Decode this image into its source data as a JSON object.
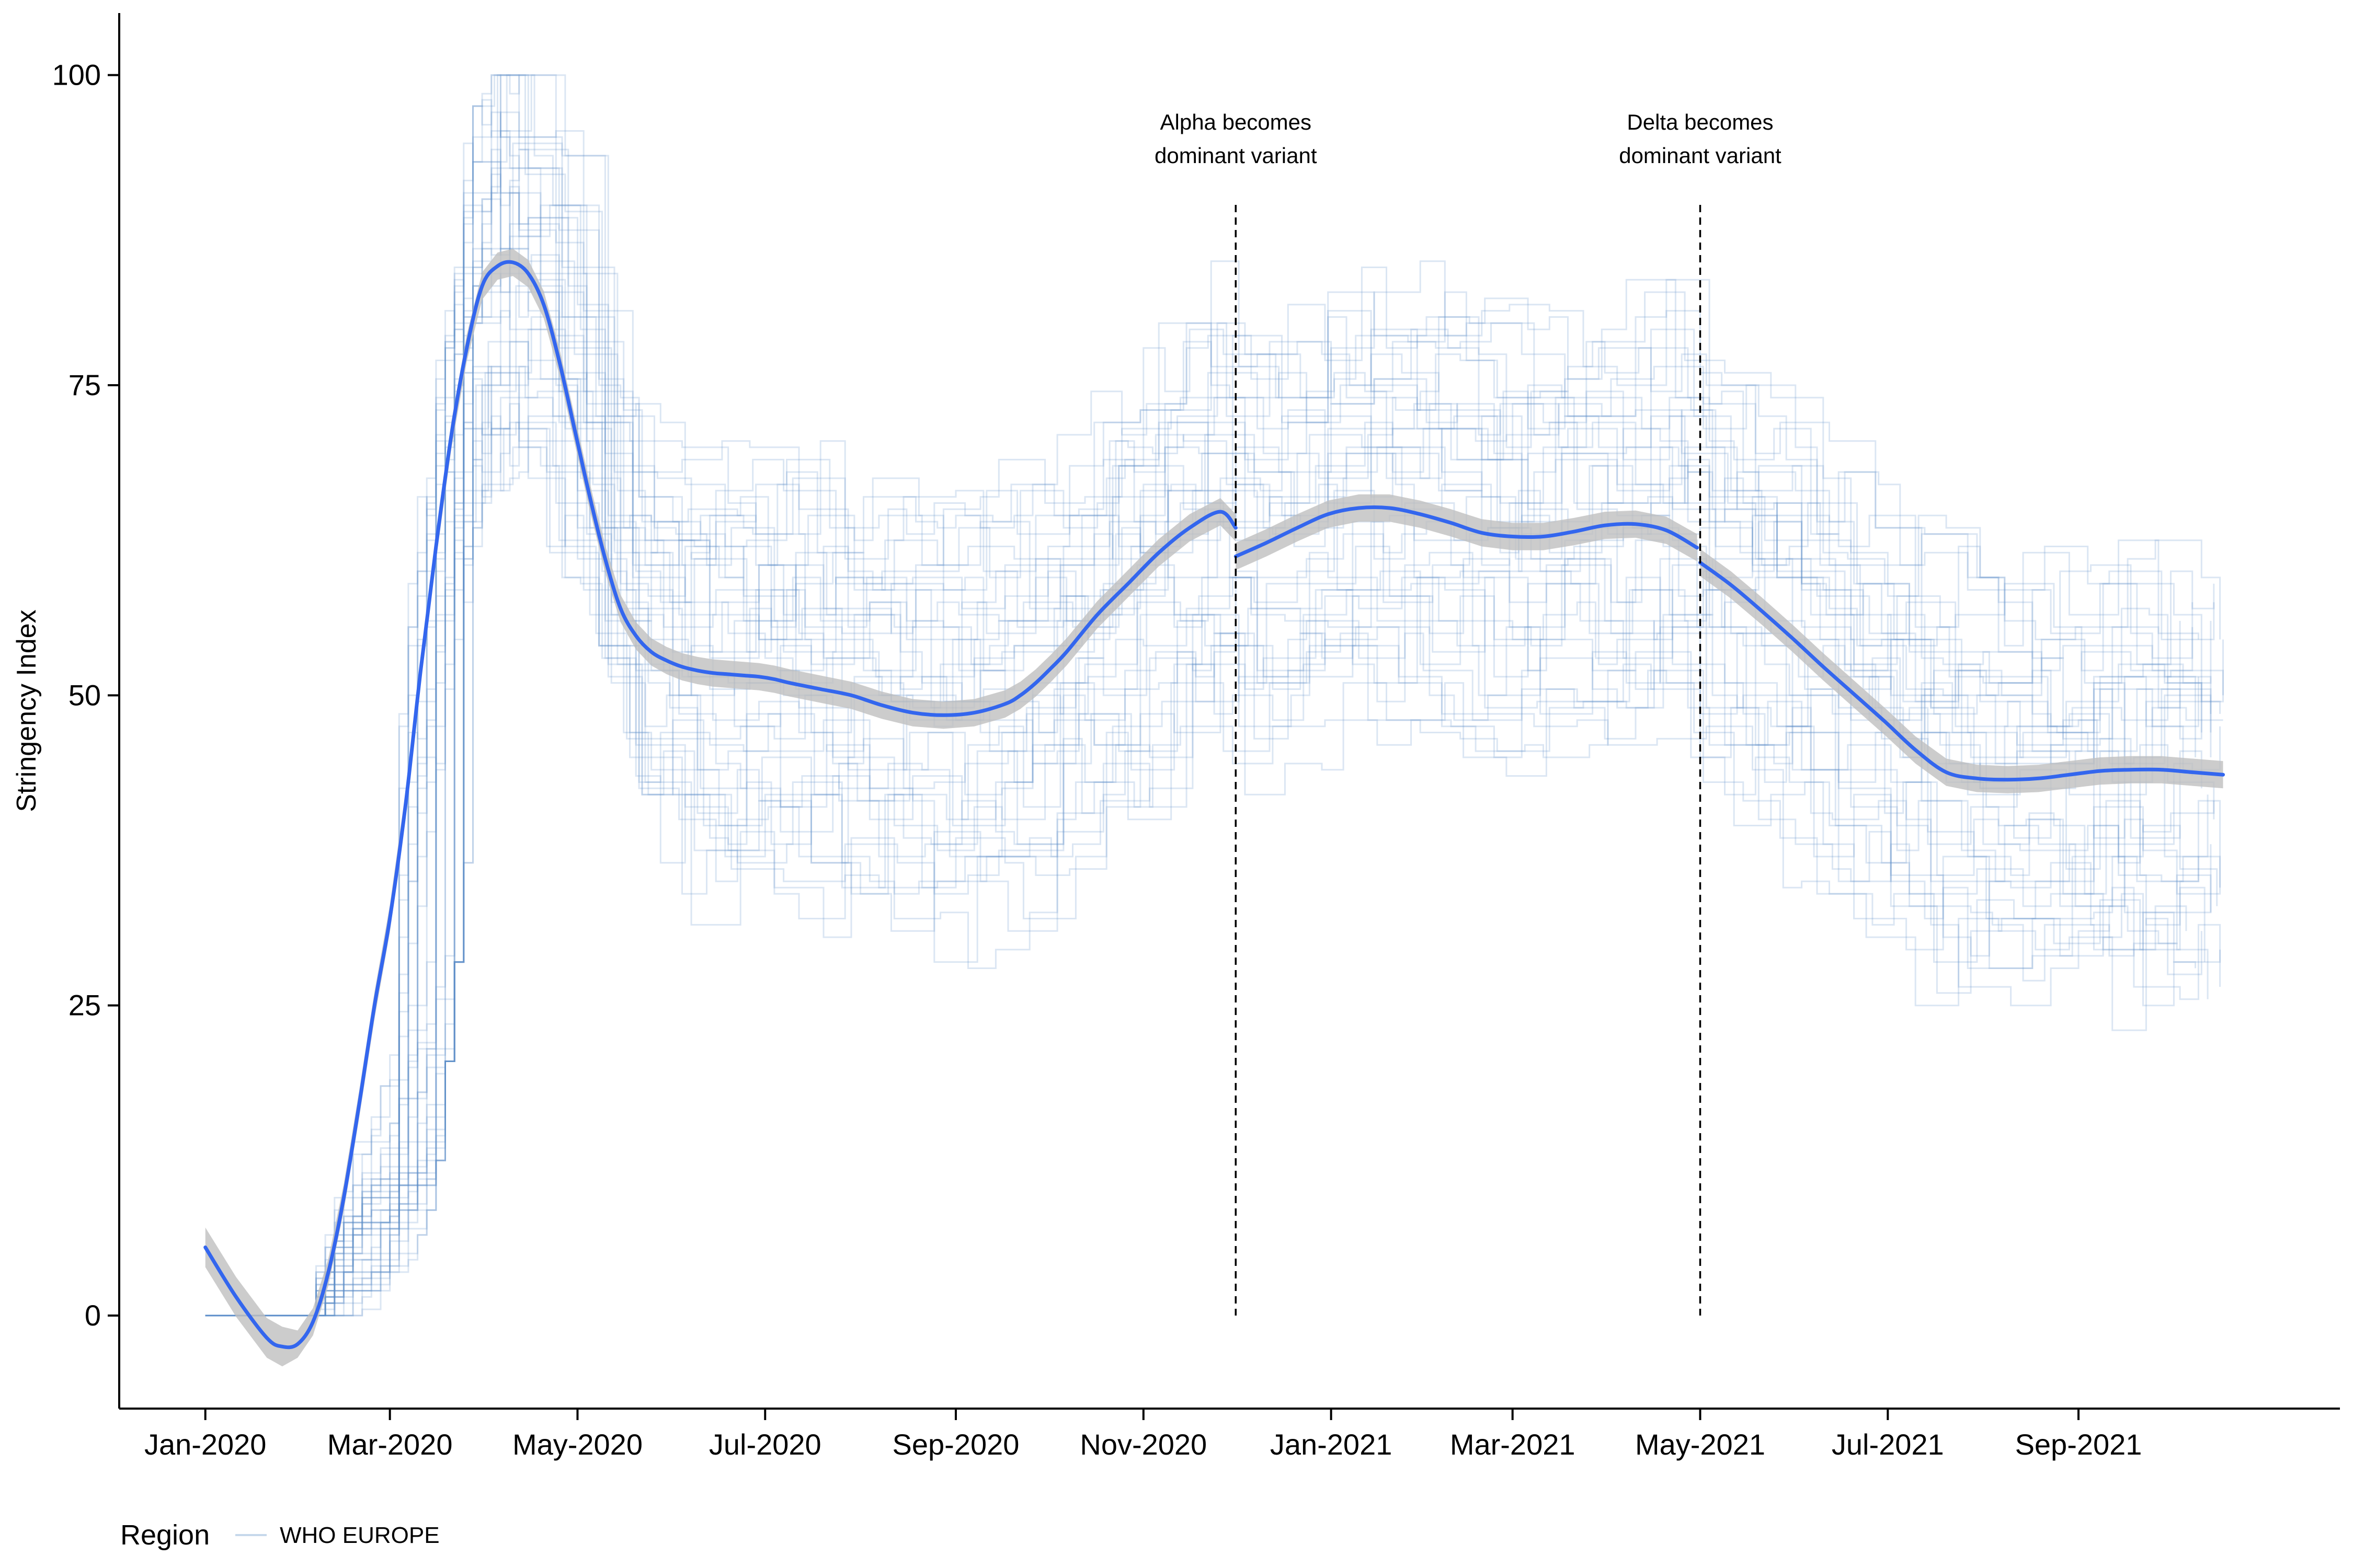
{
  "chart_data": {
    "type": "line",
    "xlabel": "",
    "ylabel": "Stringency Index",
    "ylim": [
      -7.5,
      105
    ],
    "xlim": [
      "2019-12-04",
      "2021-11-25"
    ],
    "x_ticks": [
      {
        "date": "2020-01-01",
        "label": "Jan-2020"
      },
      {
        "date": "2020-03-01",
        "label": "Mar-2020"
      },
      {
        "date": "2020-05-01",
        "label": "May-2020"
      },
      {
        "date": "2020-07-01",
        "label": "Jul-2020"
      },
      {
        "date": "2020-09-01",
        "label": "Sep-2020"
      },
      {
        "date": "2020-11-01",
        "label": "Nov-2020"
      },
      {
        "date": "2021-01-01",
        "label": "Jan-2021"
      },
      {
        "date": "2021-03-01",
        "label": "Mar-2021"
      },
      {
        "date": "2021-05-01",
        "label": "May-2021"
      },
      {
        "date": "2021-07-01",
        "label": "Jul-2021"
      },
      {
        "date": "2021-09-01",
        "label": "Sep-2021"
      }
    ],
    "y_ticks": [
      0,
      25,
      50,
      75,
      100
    ],
    "grid": false,
    "legend": {
      "position": "bottom-left",
      "title": "Region",
      "entries": [
        "WHO EUROPE"
      ]
    },
    "annotations": [
      {
        "date": "2020-12-01",
        "lines": [
          "Alpha becomes",
          "dominant variant"
        ]
      },
      {
        "date": "2021-05-01",
        "lines": [
          "Delta becomes",
          "dominant variant"
        ]
      }
    ],
    "colors": {
      "smooth": "#3366ee",
      "band": "#bfbfbf",
      "countries": "#5b8fc7",
      "axis": "#000000"
    },
    "smooth_segments": [
      {
        "name": "Before Alpha",
        "x": [
          "2020-01-01",
          "2020-01-11",
          "2020-01-21",
          "2020-01-26",
          "2020-01-31",
          "2020-02-05",
          "2020-02-10",
          "2020-02-15",
          "2020-02-20",
          "2020-02-25",
          "2020-03-01",
          "2020-03-06",
          "2020-03-11",
          "2020-03-16",
          "2020-03-21",
          "2020-03-26",
          "2020-03-31",
          "2020-04-05",
          "2020-04-10",
          "2020-04-15",
          "2020-04-20",
          "2020-04-25",
          "2020-04-30",
          "2020-05-05",
          "2020-05-10",
          "2020-05-15",
          "2020-05-20",
          "2020-05-25",
          "2020-05-30",
          "2020-06-04",
          "2020-06-09",
          "2020-06-14",
          "2020-06-19",
          "2020-06-24",
          "2020-06-29",
          "2020-07-04",
          "2020-07-09",
          "2020-07-19",
          "2020-07-29",
          "2020-08-08",
          "2020-08-18",
          "2020-08-28",
          "2020-09-07",
          "2020-09-17",
          "2020-09-22",
          "2020-09-27",
          "2020-10-02",
          "2020-10-07",
          "2020-10-17",
          "2020-10-27",
          "2020-11-06",
          "2020-11-16",
          "2020-11-26",
          "2020-12-01"
        ],
        "y": [
          5.5,
          1.5,
          -1.8,
          -2.5,
          -2.3,
          -0.5,
          3.5,
          9.5,
          17,
          25,
          32,
          41,
          52,
          62,
          71,
          78,
          83,
          84.6,
          84.9,
          84,
          81.5,
          77,
          71.5,
          66,
          61,
          57,
          54.8,
          53.5,
          52.8,
          52.3,
          52,
          51.8,
          51.7,
          51.6,
          51.5,
          51.3,
          51,
          50.5,
          50,
          49.2,
          48.6,
          48.4,
          48.6,
          49.3,
          50,
          51,
          52.2,
          53.5,
          56.5,
          59,
          61.5,
          63.5,
          64.8,
          63.5
        ]
      },
      {
        "name": "Alpha to Delta",
        "x": [
          "2020-12-01",
          "2020-12-11",
          "2020-12-21",
          "2020-12-31",
          "2021-01-10",
          "2021-01-20",
          "2021-01-30",
          "2021-02-09",
          "2021-02-19",
          "2021-03-01",
          "2021-03-11",
          "2021-03-21",
          "2021-03-31",
          "2021-04-10",
          "2021-04-20",
          "2021-04-30"
        ],
        "y": [
          61.2,
          62.3,
          63.5,
          64.6,
          65.1,
          65.1,
          64.6,
          63.9,
          63.1,
          62.8,
          62.8,
          63.2,
          63.7,
          63.8,
          63.3,
          61.9
        ]
      },
      {
        "name": "After Delta",
        "x": [
          "2021-05-01",
          "2021-05-11",
          "2021-05-21",
          "2021-05-31",
          "2021-06-10",
          "2021-06-20",
          "2021-06-30",
          "2021-07-10",
          "2021-07-20",
          "2021-07-30",
          "2021-08-09",
          "2021-08-19",
          "2021-08-29",
          "2021-09-08",
          "2021-09-18",
          "2021-09-28",
          "2021-10-08",
          "2021-10-18"
        ],
        "y": [
          60.7,
          58.9,
          56.8,
          54.6,
          52.3,
          50.1,
          47.9,
          45.6,
          43.8,
          43.3,
          43.2,
          43.3,
          43.6,
          43.9,
          44,
          44,
          43.8,
          43.6
        ]
      }
    ],
    "country_ranges": [
      {
        "x": [
          "2020-01-01",
          "2020-02-01",
          "2020-03-01",
          "2020-03-15",
          "2020-04-01",
          "2020-05-01",
          "2020-06-01",
          "2020-07-01",
          "2020-08-01",
          "2020-09-01",
          "2020-10-01",
          "2020-11-01",
          "2020-12-01",
          "2021-01-01",
          "2021-02-01",
          "2021-03-01",
          "2021-04-01",
          "2021-05-01",
          "2021-06-01",
          "2021-07-01",
          "2021-08-01",
          "2021-09-01",
          "2021-10-18"
        ],
        "low": [
          0,
          0,
          0,
          10,
          55,
          60,
          33,
          25,
          25,
          25,
          28,
          30,
          32,
          28,
          30,
          30,
          30,
          30,
          28,
          22,
          20,
          20,
          19
        ],
        "high": [
          0,
          19,
          50,
          90,
          100,
          100,
          92,
          96,
          92,
          85,
          88,
          88,
          88,
          90,
          88,
          88,
          88,
          82,
          78,
          75,
          70,
          79,
          67
        ]
      }
    ]
  }
}
